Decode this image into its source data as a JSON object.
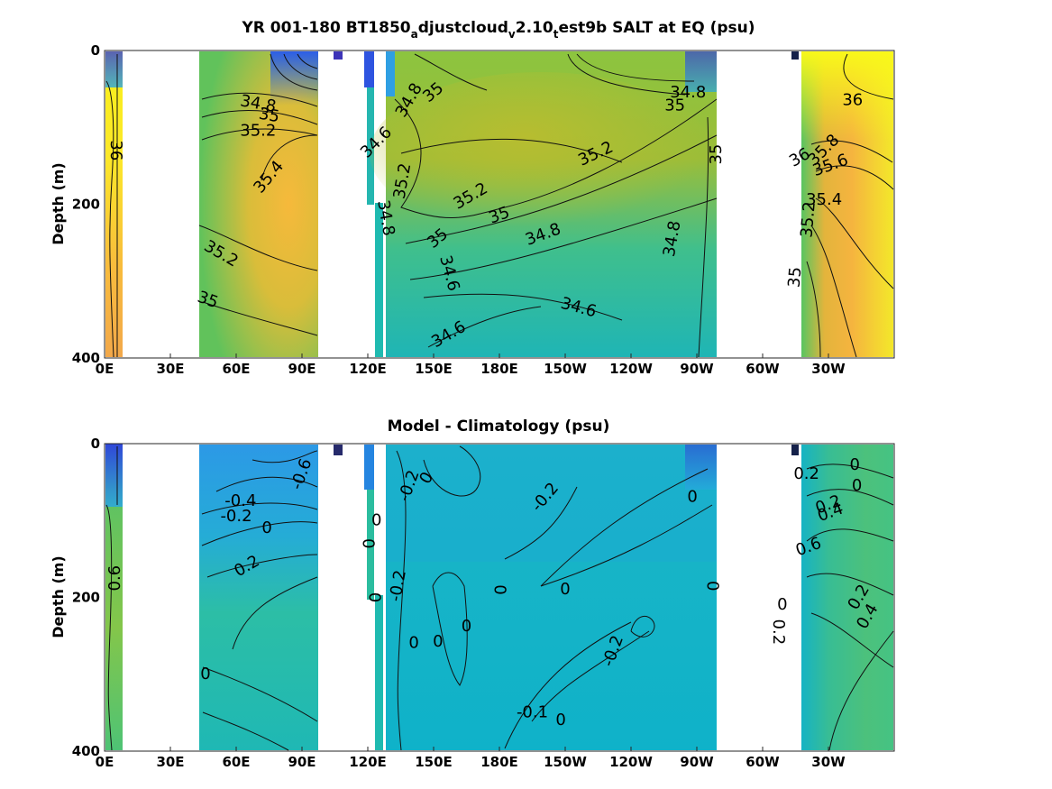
{
  "chart_data": [
    {
      "type": "heatmap",
      "title": "YR 001-180 BT1850_adjustcloud_v2.10_test9b SALT at EQ (psu)",
      "title_parts": {
        "a": "YR 001-180 BT1850",
        "b": "a",
        "c": "djustcloud",
        "d": "v",
        "e": "2.10",
        "f": "t",
        "g": "est9b SALT at EQ (psu)"
      },
      "ylabel": "Depth (m)",
      "xlabel": "",
      "xlim": [
        0,
        360
      ],
      "ylim": [
        400,
        0
      ],
      "x_tick_labels": [
        "0E",
        "30E",
        "60E",
        "90E",
        "120E",
        "150E",
        "180E",
        "150W",
        "120W",
        "90W",
        "60W",
        "30W"
      ],
      "y_tick_labels": [
        "0",
        "200",
        "400"
      ],
      "colormap": "parula",
      "color_range": [
        33.8,
        36.2
      ],
      "contour_labels": [
        {
          "text": "36",
          "lon": 5,
          "depth": 130,
          "rot": 90
        },
        {
          "text": "34.8",
          "lon": 70,
          "depth": 70,
          "rot": 10
        },
        {
          "text": "35",
          "lon": 75,
          "depth": 85,
          "rot": 10
        },
        {
          "text": "35.2",
          "lon": 70,
          "depth": 105,
          "rot": 0
        },
        {
          "text": "35.4",
          "lon": 75,
          "depth": 165,
          "rot": -50
        },
        {
          "text": "35.2",
          "lon": 53,
          "depth": 265,
          "rot": 30
        },
        {
          "text": "35",
          "lon": 47,
          "depth": 325,
          "rot": 20
        },
        {
          "text": "34.6",
          "lon": 124,
          "depth": 120,
          "rot": -45
        },
        {
          "text": "34.8",
          "lon": 139,
          "depth": 65,
          "rot": -60
        },
        {
          "text": "35",
          "lon": 150,
          "depth": 55,
          "rot": -40
        },
        {
          "text": "35.2",
          "lon": 136,
          "depth": 170,
          "rot": -80
        },
        {
          "text": "34.8",
          "lon": 128,
          "depth": 218,
          "rot": 80
        },
        {
          "text": "35.2",
          "lon": 167,
          "depth": 190,
          "rot": -30
        },
        {
          "text": "35",
          "lon": 180,
          "depth": 215,
          "rot": -20
        },
        {
          "text": "35.2",
          "lon": 224,
          "depth": 135,
          "rot": -25
        },
        {
          "text": "34.8",
          "lon": 200,
          "depth": 240,
          "rot": -20
        },
        {
          "text": "35",
          "lon": 152,
          "depth": 245,
          "rot": -40
        },
        {
          "text": "34.6",
          "lon": 157,
          "depth": 290,
          "rot": 75
        },
        {
          "text": "34.6",
          "lon": 216,
          "depth": 335,
          "rot": 15
        },
        {
          "text": "34.6",
          "lon": 157,
          "depth": 370,
          "rot": -30
        },
        {
          "text": "34.8",
          "lon": 266,
          "depth": 55,
          "rot": 0
        },
        {
          "text": "35",
          "lon": 260,
          "depth": 72,
          "rot": 0
        },
        {
          "text": "35",
          "lon": 279,
          "depth": 135,
          "rot": -90
        },
        {
          "text": "34.8",
          "lon": 259,
          "depth": 245,
          "rot": -80
        },
        {
          "text": "36",
          "lon": 341,
          "depth": 65,
          "rot": 0
        },
        {
          "text": "36",
          "lon": 317,
          "depth": 140,
          "rot": -30
        },
        {
          "text": "35.8",
          "lon": 328,
          "depth": 130,
          "rot": -45
        },
        {
          "text": "35.6",
          "lon": 331,
          "depth": 150,
          "rot": -20
        },
        {
          "text": "35.4",
          "lon": 328,
          "depth": 195,
          "rot": 0
        },
        {
          "text": "35.2",
          "lon": 321,
          "depth": 220,
          "rot": -85
        },
        {
          "text": "35",
          "lon": 315,
          "depth": 295,
          "rot": -85
        }
      ]
    },
    {
      "type": "heatmap",
      "title": "Model - Climatology (psu)",
      "ylabel": "Depth (m)",
      "xlabel": "",
      "xlim": [
        0,
        360
      ],
      "ylim": [
        400,
        0
      ],
      "x_tick_labels": [
        "0E",
        "30E",
        "60E",
        "90E",
        "120E",
        "150E",
        "180E",
        "150W",
        "120W",
        "90W",
        "60W",
        "30W"
      ],
      "y_tick_labels": [
        "0",
        "200",
        "400"
      ],
      "colormap": "parula",
      "color_range": [
        -1.2,
        1.2
      ],
      "contour_labels": [
        {
          "text": "0.6",
          "lon": 5,
          "depth": 175,
          "rot": -90
        },
        {
          "text": "-0.6",
          "lon": 90,
          "depth": 40,
          "rot": -70
        },
        {
          "text": "-0.4",
          "lon": 62,
          "depth": 75,
          "rot": 0
        },
        {
          "text": "-0.2",
          "lon": 60,
          "depth": 95,
          "rot": 0
        },
        {
          "text": "0",
          "lon": 74,
          "depth": 110,
          "rot": 0
        },
        {
          "text": "0.2",
          "lon": 65,
          "depth": 160,
          "rot": -30
        },
        {
          "text": "0",
          "lon": 46,
          "depth": 300,
          "rot": 0
        },
        {
          "text": "0",
          "lon": 124,
          "depth": 100,
          "rot": 0
        },
        {
          "text": "0",
          "lon": 121,
          "depth": 130,
          "rot": -90
        },
        {
          "text": "0",
          "lon": 124,
          "depth": 200,
          "rot": -90
        },
        {
          "text": "0",
          "lon": 147,
          "depth": 45,
          "rot": -60
        },
        {
          "text": "-0.2",
          "lon": 139,
          "depth": 55,
          "rot": -70
        },
        {
          "text": "-0.2",
          "lon": 134,
          "depth": 185,
          "rot": -80
        },
        {
          "text": "0",
          "lon": 141,
          "depth": 260,
          "rot": 0
        },
        {
          "text": "0",
          "lon": 152,
          "depth": 258,
          "rot": 0
        },
        {
          "text": "0",
          "lon": 165,
          "depth": 238,
          "rot": 0
        },
        {
          "text": "0",
          "lon": 181,
          "depth": 190,
          "rot": -90
        },
        {
          "text": "0",
          "lon": 210,
          "depth": 190,
          "rot": 0
        },
        {
          "text": "-0.2",
          "lon": 201,
          "depth": 70,
          "rot": -50
        },
        {
          "text": "0",
          "lon": 268,
          "depth": 70,
          "rot": 0
        },
        {
          "text": "0",
          "lon": 278,
          "depth": 185,
          "rot": -90
        },
        {
          "text": "-0.2",
          "lon": 232,
          "depth": 270,
          "rot": -70
        },
        {
          "text": "-0.1",
          "lon": 195,
          "depth": 350,
          "rot": 0
        },
        {
          "text": "0",
          "lon": 208,
          "depth": 360,
          "rot": 0
        },
        {
          "text": "0.2",
          "lon": 320,
          "depth": 40,
          "rot": 0
        },
        {
          "text": "0",
          "lon": 342,
          "depth": 28,
          "rot": 0
        },
        {
          "text": "0",
          "lon": 343,
          "depth": 55,
          "rot": 0
        },
        {
          "text": "0.2",
          "lon": 330,
          "depth": 80,
          "rot": -20
        },
        {
          "text": "0.4",
          "lon": 331,
          "depth": 90,
          "rot": -20
        },
        {
          "text": "0.6",
          "lon": 321,
          "depth": 135,
          "rot": -20
        },
        {
          "text": "0",
          "lon": 309,
          "depth": 210,
          "rot": 0
        },
        {
          "text": "0.2",
          "lon": 344,
          "depth": 200,
          "rot": -60
        },
        {
          "text": "0.4",
          "lon": 348,
          "depth": 225,
          "rot": -60
        },
        {
          "text": "0.2",
          "lon": 307,
          "depth": 245,
          "rot": 90
        }
      ]
    }
  ]
}
